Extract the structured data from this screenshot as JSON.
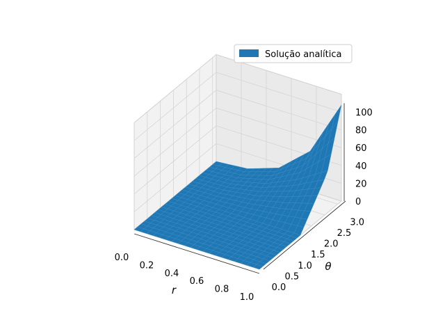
{
  "chart_data": {
    "type": "surface3d",
    "title": "",
    "xlabel": "r",
    "ylabel": "θ",
    "zlabel": "",
    "xlim": [
      0.0,
      1.0
    ],
    "ylim": [
      0.0,
      3.14
    ],
    "zlim": [
      0,
      110
    ],
    "x_ticks": [
      0.0,
      0.2,
      0.4,
      0.6,
      0.8,
      1.0
    ],
    "x_tick_labels": [
      "0.0",
      "0.2",
      "0.4",
      "0.6",
      "0.8",
      "1.0"
    ],
    "y_ticks": [
      0.0,
      0.5,
      1.0,
      1.5,
      2.0,
      2.5,
      3.0
    ],
    "y_tick_labels": [
      "0.0",
      "0.5",
      "1.0",
      "1.5",
      "2.0",
      "2.5",
      "3.0"
    ],
    "z_ticks": [
      0,
      20,
      40,
      60,
      80,
      100
    ],
    "z_tick_labels": [
      "0",
      "20",
      "40",
      "60",
      "80",
      "100"
    ],
    "grid": true,
    "legend": {
      "position": "top-right",
      "entries": [
        "Solução analítica"
      ]
    },
    "series": [
      {
        "name": "Solução analítica",
        "color": "#1f77b4",
        "surface": {
          "r": [
            0.0,
            0.25,
            0.5,
            0.75,
            1.0
          ],
          "theta": [
            0.0,
            1.57,
            2.6,
            3.14
          ],
          "z": [
            [
              0,
              0,
              0,
              0
            ],
            [
              0,
              0,
              2,
              3
            ],
            [
              0,
              0,
              10,
              15
            ],
            [
              0,
              0,
              25,
              45
            ],
            [
              0,
              0,
              45,
              108
            ]
          ]
        }
      }
    ]
  }
}
